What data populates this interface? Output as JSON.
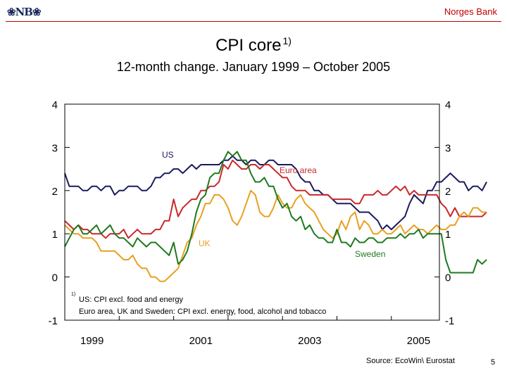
{
  "header": {
    "logo_text": "❀NB❀",
    "bank_name": "Norges Bank"
  },
  "title_text": "CPI core",
  "title_sup": "1)",
  "subtitle": "12-month change. January 1999 – October 2005",
  "footnote_sup": "1)",
  "footnote_line1": "US: CPI excl. food and energy",
  "footnote_line2": "Euro area, UK and Sweden: CPI excl. energy, food, alcohol and tobacco",
  "source": "Source: EcoWin\\ Eurostat",
  "page_number": "5",
  "colors": {
    "US": "#1a1a5e",
    "Euro area": "#c8282d",
    "UK": "#e8a020",
    "Sweden": "#1f7a1f"
  },
  "chart_data": {
    "type": "line",
    "xlabel": "",
    "ylabel": "",
    "ylim": [
      -1,
      4
    ],
    "yticks": [
      "-1",
      "0",
      "1",
      "2",
      "3",
      "4"
    ],
    "xticks": [
      "1999",
      "2001",
      "2003",
      "2005"
    ],
    "x_start": "1999-01",
    "x_end": "2005-10",
    "grid": false,
    "series": [
      {
        "name": "US",
        "label_text": "US",
        "values": [
          2.4,
          2.1,
          2.1,
          2.1,
          2.0,
          2.0,
          2.1,
          2.1,
          2.0,
          2.1,
          2.1,
          1.9,
          2.0,
          2.0,
          2.1,
          2.1,
          2.1,
          2.0,
          2.0,
          2.1,
          2.3,
          2.3,
          2.4,
          2.4,
          2.5,
          2.5,
          2.4,
          2.5,
          2.6,
          2.5,
          2.6,
          2.6,
          2.6,
          2.6,
          2.6,
          2.7,
          2.7,
          2.8,
          2.7,
          2.7,
          2.6,
          2.7,
          2.7,
          2.6,
          2.6,
          2.7,
          2.7,
          2.6,
          2.6,
          2.6,
          2.6,
          2.5,
          2.3,
          2.2,
          2.2,
          2.0,
          2.0,
          1.9,
          1.9,
          1.8,
          1.7,
          1.7,
          1.7,
          1.7,
          1.6,
          1.5,
          1.5,
          1.5,
          1.4,
          1.3,
          1.1,
          1.2,
          1.1,
          1.2,
          1.3,
          1.4,
          1.7,
          1.9,
          1.8,
          1.7,
          2.0,
          2.0,
          2.2,
          2.2,
          2.3,
          2.4,
          2.3,
          2.2,
          2.2,
          2.0,
          2.1,
          2.1,
          2.0,
          2.2
        ]
      },
      {
        "name": "Euro area",
        "label_text": "Euro area",
        "values": [
          1.3,
          1.2,
          1.1,
          1.2,
          1.1,
          1.1,
          1.0,
          1.0,
          1.0,
          0.9,
          1.0,
          1.0,
          1.0,
          1.1,
          0.9,
          1.0,
          1.1,
          1.0,
          1.0,
          1.0,
          1.1,
          1.1,
          1.3,
          1.3,
          1.8,
          1.4,
          1.6,
          1.7,
          1.8,
          1.8,
          2.0,
          2.0,
          2.1,
          2.1,
          2.2,
          2.6,
          2.5,
          2.7,
          2.6,
          2.5,
          2.5,
          2.6,
          2.6,
          2.5,
          2.6,
          2.6,
          2.5,
          2.4,
          2.3,
          2.3,
          2.1,
          2.0,
          2.0,
          2.0,
          1.9,
          1.9,
          1.9,
          1.9,
          1.9,
          1.8,
          1.8,
          1.8,
          1.8,
          1.8,
          1.7,
          1.7,
          1.9,
          1.9,
          1.9,
          2.0,
          1.9,
          1.9,
          2.0,
          2.1,
          2.0,
          2.1,
          1.9,
          2.0,
          1.9,
          1.9,
          1.9,
          1.9,
          1.9,
          1.7,
          1.6,
          1.4,
          1.6,
          1.4,
          1.4,
          1.4,
          1.4,
          1.4,
          1.4,
          1.5
        ]
      },
      {
        "name": "UK",
        "label_text": "UK",
        "values": [
          1.2,
          1.1,
          1.0,
          1.0,
          0.9,
          0.9,
          0.9,
          0.8,
          0.6,
          0.6,
          0.6,
          0.6,
          0.5,
          0.4,
          0.4,
          0.5,
          0.3,
          0.2,
          0.2,
          0.0,
          0.0,
          -0.1,
          -0.1,
          0.0,
          0.1,
          0.2,
          0.5,
          0.8,
          0.9,
          1.2,
          1.4,
          1.7,
          1.7,
          1.9,
          1.9,
          1.8,
          1.6,
          1.3,
          1.2,
          1.4,
          1.7,
          2.0,
          1.9,
          1.5,
          1.4,
          1.4,
          1.6,
          1.9,
          1.7,
          1.6,
          1.6,
          1.8,
          1.9,
          1.7,
          1.6,
          1.5,
          1.3,
          1.1,
          1.0,
          0.9,
          1.0,
          1.3,
          1.1,
          1.4,
          1.5,
          1.1,
          1.3,
          1.2,
          1.0,
          1.0,
          1.1,
          1.0,
          1.0,
          1.1,
          1.2,
          1.0,
          1.1,
          1.2,
          1.1,
          1.1,
          1.0,
          1.1,
          1.2,
          1.1,
          1.1,
          1.2,
          1.2,
          1.4,
          1.5,
          1.4,
          1.6,
          1.6,
          1.5,
          1.5
        ]
      },
      {
        "name": "Sweden",
        "label_text": "Sweden",
        "values": [
          0.7,
          0.9,
          1.1,
          1.2,
          1.0,
          1.0,
          1.1,
          1.2,
          1.0,
          1.1,
          1.2,
          1.0,
          0.9,
          0.9,
          0.8,
          0.7,
          0.9,
          0.8,
          0.7,
          0.8,
          0.8,
          0.7,
          0.6,
          0.5,
          0.8,
          0.3,
          0.4,
          0.6,
          1.0,
          1.5,
          1.8,
          1.9,
          2.3,
          2.4,
          2.4,
          2.7,
          2.9,
          2.8,
          2.9,
          2.7,
          2.7,
          2.4,
          2.2,
          2.2,
          2.3,
          2.1,
          2.1,
          1.8,
          1.6,
          1.7,
          1.4,
          1.3,
          1.4,
          1.1,
          1.2,
          1.0,
          0.9,
          0.9,
          0.8,
          0.8,
          1.1,
          0.8,
          0.8,
          0.7,
          0.9,
          0.8,
          0.8,
          0.9,
          0.9,
          0.8,
          0.8,
          0.9,
          0.9,
          0.9,
          1.0,
          0.9,
          1.0,
          1.0,
          1.1,
          0.9,
          1.0,
          1.0,
          1.0,
          1.0,
          0.4,
          0.1,
          0.1,
          0.1,
          0.1,
          0.1,
          0.1,
          0.4,
          0.3,
          0.4
        ]
      }
    ]
  }
}
